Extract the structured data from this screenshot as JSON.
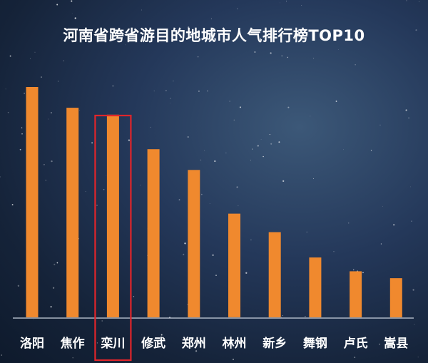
{
  "chart_data": {
    "type": "bar",
    "title": "河南省跨省游目的地城市人气排行榜TOP10",
    "categories": [
      "洛阳",
      "焦作",
      "栾川",
      "修武",
      "郑州",
      "林州",
      "新乡",
      "舞钢",
      "卢氏",
      "嵩县"
    ],
    "values": [
      100,
      91,
      88,
      73,
      64,
      45,
      37,
      26,
      20,
      17
    ],
    "highlighted_category": "栾川",
    "ylim": [
      0,
      100
    ],
    "grid": false,
    "legend": "none",
    "colors": {
      "bar": "#f0892e",
      "highlight_box": "#e0252a",
      "axis": "#c9d2de",
      "text": "#ffffff"
    }
  }
}
